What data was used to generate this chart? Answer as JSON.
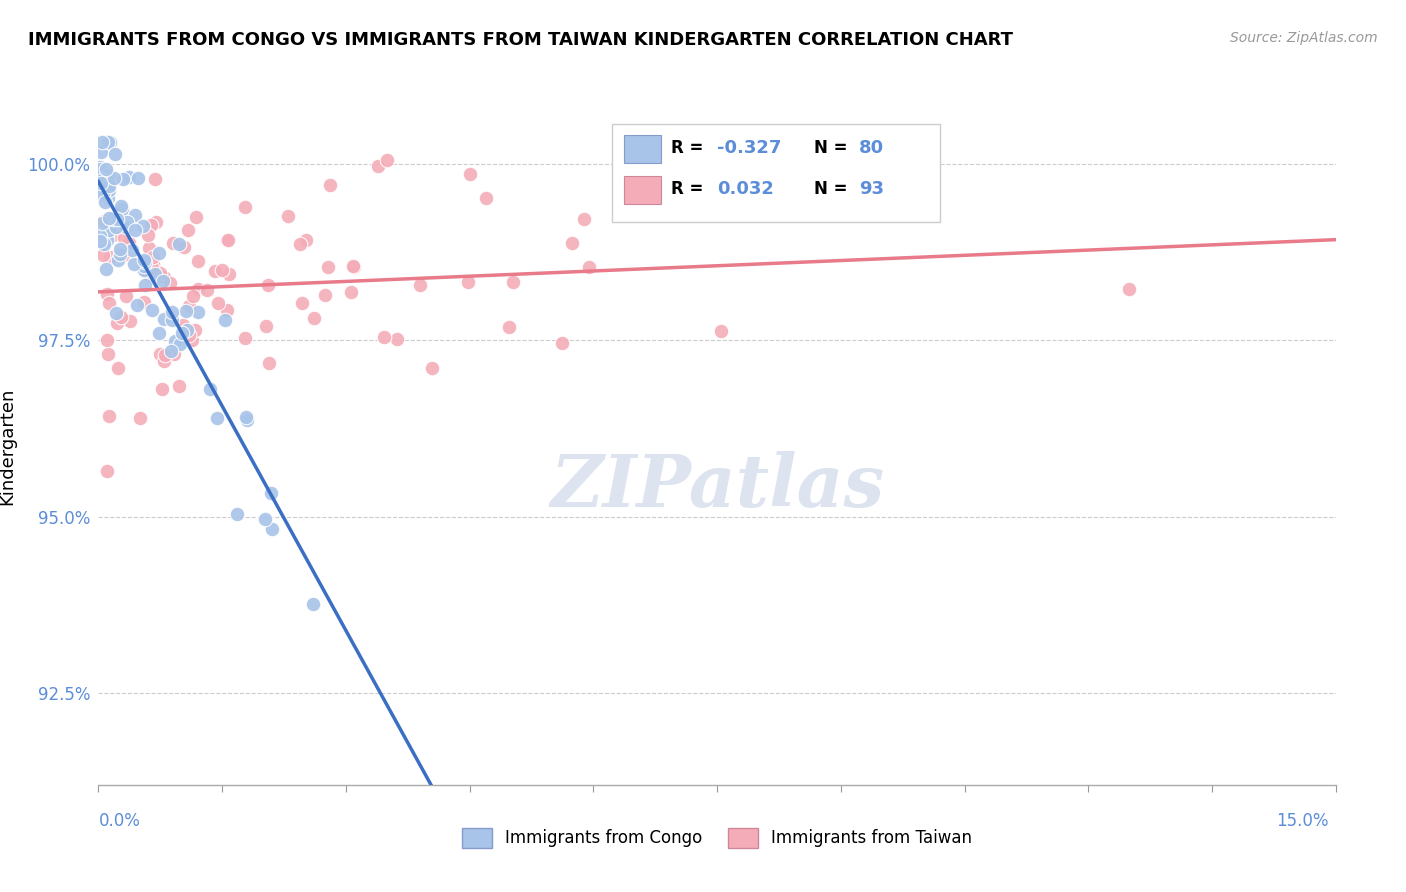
{
  "title": "IMMIGRANTS FROM CONGO VS IMMIGRANTS FROM TAIWAN KINDERGARTEN CORRELATION CHART",
  "source": "Source: ZipAtlas.com",
  "ylabel": "Kindergarten",
  "y_tick_labels": [
    "92.5%",
    "95.0%",
    "97.5%",
    "100.0%"
  ],
  "y_tick_values": [
    92.5,
    95.0,
    97.5,
    100.0
  ],
  "xmin": 0.0,
  "xmax": 15.0,
  "ymin": 91.2,
  "ymax": 100.8,
  "congo_R": "-0.327",
  "congo_N": "80",
  "taiwan_R": "0.032",
  "taiwan_N": "93",
  "congo_color": "#a8c4e8",
  "taiwan_color": "#f4adb8",
  "congo_line_color": "#3a6fc4",
  "taiwan_line_color": "#e87a8a",
  "axis_label_color": "#5b8dd9",
  "watermark_color": "#dde4f0",
  "congo_seed": 42,
  "taiwan_seed": 77
}
